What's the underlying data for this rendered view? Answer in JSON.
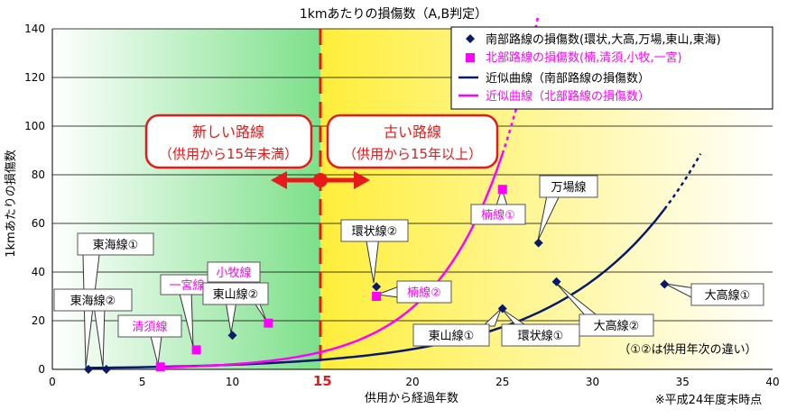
{
  "chart_data": {
    "type": "scatter",
    "title": "1kmあたりの損傷数（A,B判定）",
    "xlabel": "供用から経過年数",
    "ylabel": "1kmあたりの損傷数",
    "xlim": [
      0,
      40
    ],
    "ylim": [
      0,
      140
    ],
    "x_ticks": [
      "0",
      "5",
      "10",
      "15",
      "20",
      "25",
      "30",
      "35",
      "40"
    ],
    "y_ticks": [
      "0",
      "20",
      "40",
      "60",
      "80",
      "100",
      "120",
      "140"
    ],
    "grid": "horizontal",
    "legend_position": "top-right",
    "threshold": {
      "x": 15,
      "label": "15"
    },
    "series": [
      {
        "name": "南部路線の損傷数(環状,大高,万場,東山,東海)",
        "color": "#0a1a6b",
        "marker": "diamond",
        "points": [
          {
            "x": 2,
            "y": 0
          },
          {
            "x": 3,
            "y": 0
          },
          {
            "x": 10,
            "y": 14
          },
          {
            "x": 18,
            "y": 34
          },
          {
            "x": 25,
            "y": 25
          },
          {
            "x": 27,
            "y": 52
          },
          {
            "x": 28,
            "y": 36
          },
          {
            "x": 34,
            "y": 35
          }
        ]
      },
      {
        "name": "北部路線の損傷数(楠,清須,小牧,一宮)",
        "color": "#ff00ff",
        "marker": "square",
        "points": [
          {
            "x": 6,
            "y": 1
          },
          {
            "x": 8,
            "y": 8
          },
          {
            "x": 12,
            "y": 19
          },
          {
            "x": 18,
            "y": 30
          },
          {
            "x": 25,
            "y": 74
          }
        ]
      },
      {
        "name": "近似曲線（南部路線の損傷数）",
        "color": "#0a1a6b",
        "type": "line",
        "curve": {
          "a": 0.43,
          "b": 0.148
        },
        "solid_range": [
          2,
          34
        ],
        "dotted_range": [
          34,
          36
        ]
      },
      {
        "name": "近似曲線（北部路線の損傷数）",
        "color": "#ff00ff",
        "type": "line",
        "curve": {
          "a": 0.171,
          "b": 0.25
        },
        "solid_range": [
          6,
          25
        ],
        "dotted_range": [
          25,
          27
        ]
      }
    ],
    "callouts": {
      "new_lines": {
        "line1": "新しい路線",
        "line2": "（供用から15年未満）"
      },
      "old_lines": {
        "line1": "古い路線",
        "line2": "（供用から15年以上）"
      }
    },
    "point_labels": [
      {
        "text": "東海線①",
        "x": 2,
        "y": 0
      },
      {
        "text": "東海線②",
        "x": 3,
        "y": 0
      },
      {
        "text": "清須線",
        "x": 6,
        "y": 1
      },
      {
        "text": "一宮線",
        "x": 8,
        "y": 8
      },
      {
        "text": "小牧線",
        "x": 12,
        "y": 19
      },
      {
        "text": "東山線②",
        "x": 10,
        "y": 14
      },
      {
        "text": "環状線②",
        "x": 18,
        "y": 34
      },
      {
        "text": "楠線②",
        "x": 18,
        "y": 30
      },
      {
        "text": "楠線①",
        "x": 25,
        "y": 74
      },
      {
        "text": "万場線",
        "x": 27,
        "y": 52
      },
      {
        "text": "東山線①",
        "x": 25,
        "y": 25
      },
      {
        "text": "環状線①",
        "x": 25,
        "y": 25
      },
      {
        "text": "大高線②",
        "x": 28,
        "y": 36
      },
      {
        "text": "大高線①",
        "x": 34,
        "y": 35
      }
    ],
    "annotations": {
      "note": "（①②は供用年次の違い）",
      "footnote": "※平成24年度末時点"
    }
  }
}
